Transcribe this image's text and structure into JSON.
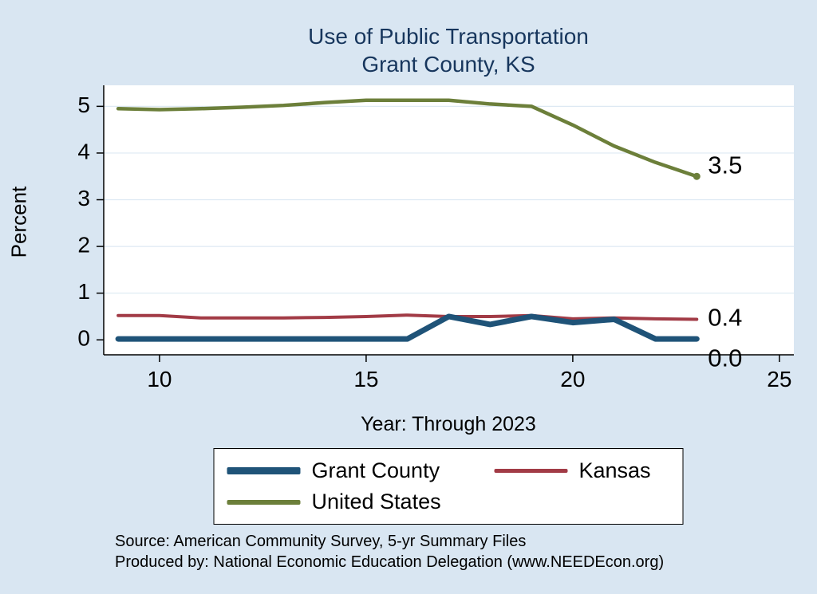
{
  "title": {
    "line1": "Use of Public Transportation",
    "line2": "Grant County, KS"
  },
  "axes": {
    "y_label": "Percent",
    "x_label": "Year: Through 2023"
  },
  "source": {
    "line1": "Source: American Community Survey, 5-yr Summary Files",
    "line2": "Produced by: National Economic Education Delegation (www.NEEDEcon.org)"
  },
  "colors": {
    "background": "#d9e6f2",
    "plot_background": "#ffffff",
    "gridline": "#dde9f3",
    "title_text": "#17365d",
    "axis_text": "#000000"
  },
  "chart_data": {
    "type": "line",
    "x": [
      9,
      10,
      11,
      12,
      13,
      14,
      15,
      16,
      17,
      18,
      19,
      20,
      21,
      22,
      23
    ],
    "series": [
      {
        "name": "Grant County",
        "color": "#1f5378",
        "width": 7,
        "values": [
          0.02,
          0.02,
          0.02,
          0.02,
          0.02,
          0.02,
          0.02,
          0.02,
          0.5,
          0.33,
          0.5,
          0.37,
          0.44,
          0.02,
          0.02
        ],
        "end_label": "0.0",
        "end_label_dy": 26,
        "end_marker": false
      },
      {
        "name": "Kansas",
        "color": "#a23b46",
        "width": 4,
        "values": [
          0.52,
          0.52,
          0.47,
          0.47,
          0.47,
          0.48,
          0.5,
          0.53,
          0.5,
          0.5,
          0.52,
          0.45,
          0.47,
          0.45,
          0.44
        ],
        "end_label": "0.4",
        "end_label_dy": 0,
        "end_marker": false
      },
      {
        "name": "United States",
        "color": "#6c7f3a",
        "width": 4.5,
        "values": [
          4.95,
          4.93,
          4.95,
          4.98,
          5.02,
          5.08,
          5.13,
          5.13,
          5.13,
          5.05,
          5.0,
          4.6,
          4.15,
          3.8,
          3.5
        ],
        "end_label": "3.5",
        "end_label_dy": -12,
        "end_marker": true
      }
    ],
    "xlim": [
      8.65,
      25.35
    ],
    "ylim": [
      -0.32,
      5.45
    ],
    "x_ticks": [
      10,
      15,
      20,
      25
    ],
    "y_ticks": [
      0,
      1,
      2,
      3,
      4,
      5
    ],
    "grid": true,
    "legend_position": "bottom"
  }
}
